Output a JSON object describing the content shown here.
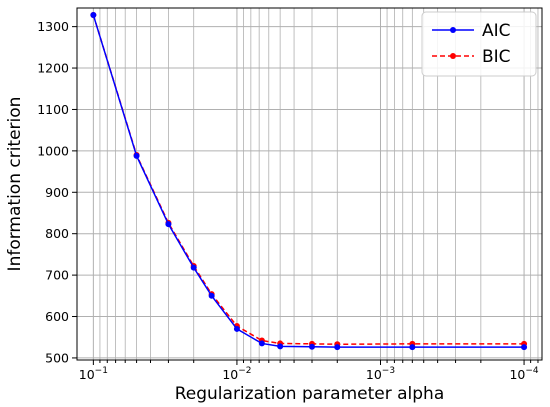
{
  "chart_data": {
    "type": "line",
    "title": "",
    "xlabel": "Regularization parameter alpha",
    "ylabel": "Information criterion",
    "x_scale": "log",
    "x_inverted": true,
    "xlim": [
      0.13,
      7.5e-05
    ],
    "ylim": [
      495,
      1345
    ],
    "grid": true,
    "legend": {
      "position": "top-right"
    },
    "x_ticks": [
      {
        "value": 0.1,
        "label": "10",
        "exp": "−1"
      },
      {
        "value": 0.01,
        "label": "10",
        "exp": "−2"
      },
      {
        "value": 0.001,
        "label": "10",
        "exp": "−3"
      },
      {
        "value": 0.0001,
        "label": "10",
        "exp": "−4"
      }
    ],
    "y_ticks": [
      500,
      600,
      700,
      800,
      900,
      1000,
      1100,
      1200,
      1300
    ],
    "x": [
      0.1,
      0.05,
      0.03,
      0.02,
      0.015,
      0.01,
      0.0067,
      0.005,
      0.003,
      0.002,
      0.0006,
      0.0001
    ],
    "series": [
      {
        "name": "AIC",
        "color": "#0000ff",
        "line_style": "solid",
        "values": [
          1328,
          988,
          823,
          718,
          650,
          570,
          535,
          528,
          527,
          526,
          526,
          526
        ]
      },
      {
        "name": "BIC",
        "color": "#ff0000",
        "line_style": "dashed",
        "values": [
          1328,
          990,
          826,
          722,
          654,
          577,
          542,
          535,
          534,
          533,
          534,
          534
        ]
      }
    ]
  }
}
